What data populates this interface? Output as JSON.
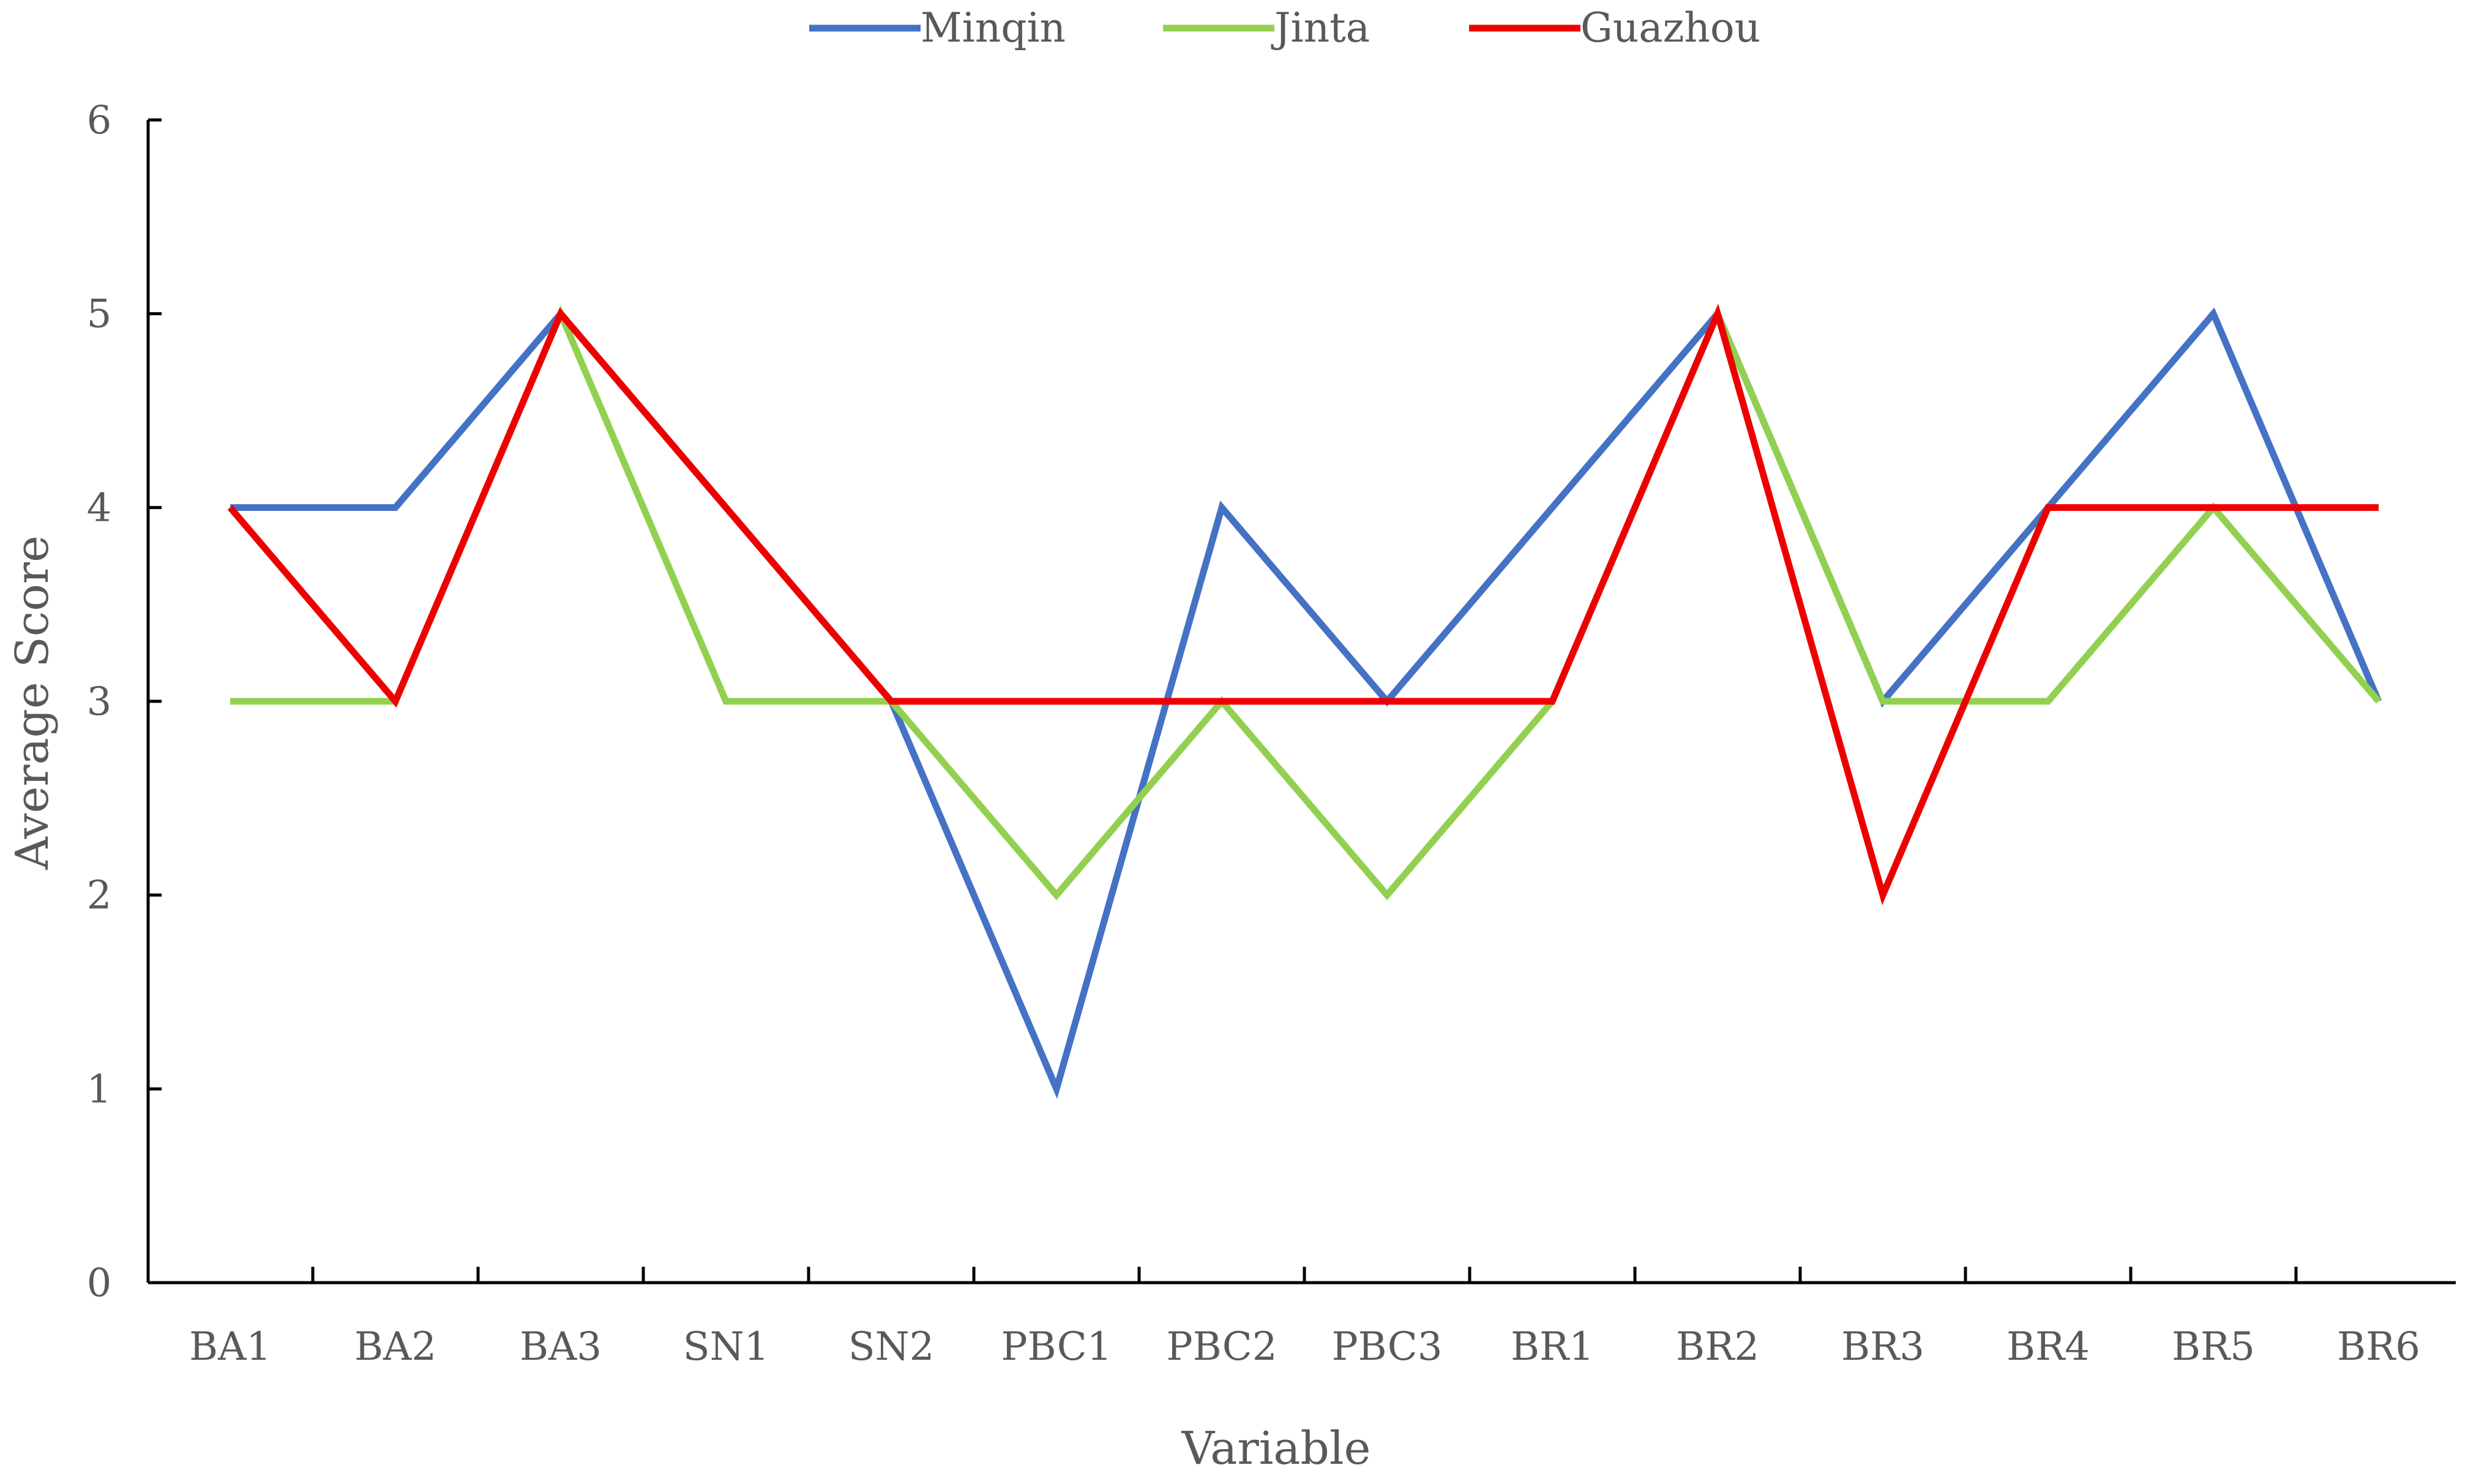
{
  "chart_data": {
    "type": "line",
    "title": "",
    "xlabel": "Variable",
    "ylabel": "Average  Score",
    "ylim": [
      0,
      6
    ],
    "yticks": [
      0,
      1,
      2,
      3,
      4,
      5,
      6
    ],
    "ytick_labels": [
      "0",
      "1",
      "2",
      "3",
      "4",
      "5",
      "6"
    ],
    "grid": false,
    "legend_position": "top-center",
    "categories": [
      "BA1",
      "BA2",
      "BA3",
      "SN1",
      "SN2",
      "PBC1",
      "PBC2",
      "PBC3",
      "BR1",
      "BR2",
      "BR3",
      "BR4",
      "BR5",
      "BR6"
    ],
    "series": [
      {
        "name": "Minqin",
        "color": "#4472C4",
        "values": [
          4,
          4,
          5,
          4,
          3,
          1,
          4,
          3,
          4,
          5,
          3,
          4,
          5,
          3
        ]
      },
      {
        "name": "Jinta",
        "color": "#92D050",
        "values": [
          3,
          3,
          5,
          3,
          3,
          2,
          3,
          2,
          3,
          5,
          3,
          3,
          4,
          3
        ]
      },
      {
        "name": "Guazhou",
        "color": "#EE0000",
        "values": [
          4,
          3,
          5,
          4,
          3,
          3,
          3,
          3,
          3,
          5,
          2,
          4,
          4,
          4
        ]
      }
    ]
  }
}
